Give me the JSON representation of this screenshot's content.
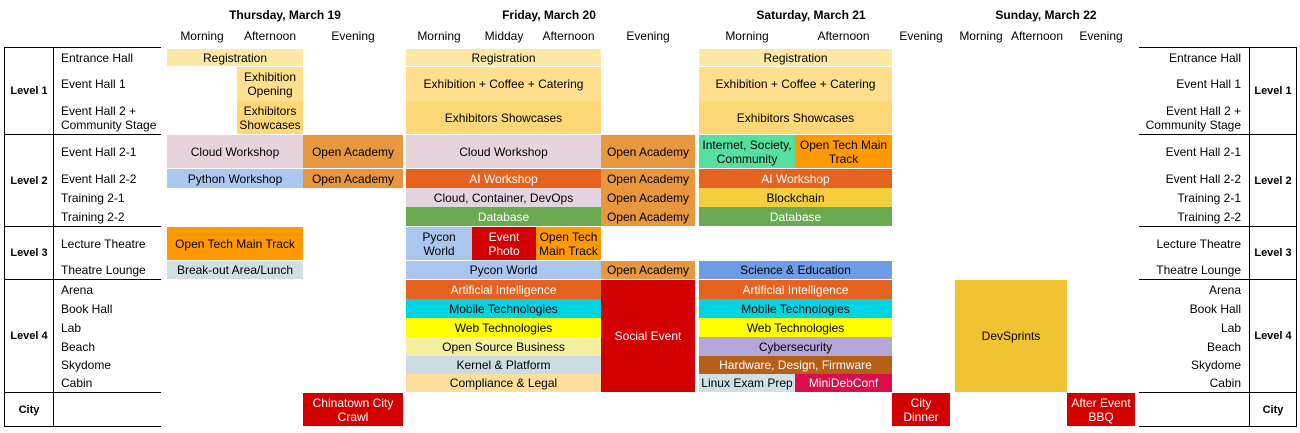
{
  "days": [
    {
      "label": "Thursday, March 19",
      "slots": [
        "Morning",
        "Afternoon",
        "Evening"
      ]
    },
    {
      "label": "Friday, March 20",
      "slots": [
        "Morning",
        "Midday",
        "Afternoon",
        "Evening"
      ]
    },
    {
      "label": "Saturday, March 21",
      "slots": [
        "Morning",
        "Afternoon",
        "Evening"
      ]
    },
    {
      "label": "Sunday, March 22",
      "slots": [
        "Morning",
        "Afternoon",
        "Evening"
      ]
    }
  ],
  "levels": [
    "Level 1",
    "Level 2",
    "Level 3",
    "Level 4",
    "City"
  ],
  "rooms": [
    "Entrance Hall",
    "Event Hall 1",
    "Event Hall 2 +\nCommunity Stage",
    "Event Hall 2-1",
    "Event Hall 2-2",
    "Training 2-1",
    "Training 2-2",
    "Lecture Theatre",
    "Theatre Lounge",
    "Arena",
    "Book Hall",
    "Lab",
    "Beach",
    "Skydome",
    "Cabin"
  ],
  "colors": {
    "registration": "#fde9a6",
    "exhibition": "#fddf8d",
    "showcase": "#fed876",
    "cloud": "#e7d3dc",
    "academy": "#e7973e",
    "python": "#aac8f0",
    "ai": "#e6621f",
    "cloud_container": "#e4d4e0",
    "database": "#6aaa51",
    "internet": "#55e0a0",
    "open_tech": "#fe9a00",
    "blockchain": "#f4ce3c",
    "red": "#d20000",
    "pycon": "#aac6ee",
    "science": "#6c9de6",
    "breakout": "#d0e0e2",
    "mobile": "#00d3e1",
    "web": "#ffff00",
    "oss": "#f4f0a0",
    "kernel": "#cbdde3",
    "compliance": "#fdde9a",
    "cyber": "#b4a6d6",
    "hardware": "#b75e19",
    "linux": "#cde2e4",
    "minidebconf": "#dc0d4d",
    "devsprints": "#f1c232"
  },
  "events": {
    "thu_registration": "Registration",
    "thu_exhibition_opening": "Exhibition Opening",
    "thu_exhibitors_showcases": "Exhibitors Showcases",
    "thu_cloud_workshop": "Cloud Workshop",
    "thu_open_academy_1": "Open Academy",
    "thu_python_workshop": "Python Workshop",
    "thu_open_academy_2": "Open Academy",
    "thu_open_tech": "Open Tech Main Track",
    "thu_breakout": "Break-out Area/Lunch",
    "thu_chinatown": "Chinatown City Crawl",
    "fri_registration": "Registration",
    "fri_exhibition": "Exhibition + Coffee + Catering",
    "fri_showcases": "Exhibitors Showcases",
    "fri_cloud_workshop": "Cloud Workshop",
    "fri_open_academy_1": "Open Academy",
    "fri_ai_workshop": "AI Workshop",
    "fri_open_academy_2": "Open Academy",
    "fri_cloud_container": "Cloud, Container, DevOps",
    "fri_open_academy_3": "Open Academy",
    "fri_database": "Database",
    "fri_open_academy_4": "Open Academy",
    "fri_pycon_world_1": "Pycon World",
    "fri_event_photo": "Event Photo",
    "fri_open_tech": "Open Tech Main Track",
    "fri_pycon_world_2": "Pycon World",
    "fri_open_academy_5": "Open Academy",
    "fri_ai": "Artificial Intelligence",
    "fri_social": "Social Event",
    "fri_mobile": "Mobile Technologies",
    "fri_web": "Web Technologies",
    "fri_oss": "Open Source Business",
    "fri_kernel": "Kernel & Platform",
    "fri_compliance": "Compliance & Legal",
    "sat_registration": "Registration",
    "sat_exhibition": "Exhibition + Coffee + Catering",
    "sat_showcases": "Exhibitors Showcases",
    "sat_internet": "Internet, Society, Community",
    "sat_open_tech": "Open Tech Main Track",
    "sat_ai_workshop": "AI Workshop",
    "sat_blockchain": "Blockchain",
    "sat_database": "Database",
    "sat_science": "Science & Education",
    "sat_ai": "Artificial Intelligence",
    "sat_mobile": "Mobile Technologies",
    "sat_web": "Web Technologies",
    "sat_cyber": "Cybersecurity",
    "sat_hardware": "Hardware, Design, Firmware",
    "sat_linux": "Linux Exam Prep",
    "sat_minidebconf": "MiniDebConf",
    "sat_city_dinner": "City Dinner",
    "sun_devsprints": "DevSprints",
    "sun_bbq": "After Event BBQ"
  }
}
